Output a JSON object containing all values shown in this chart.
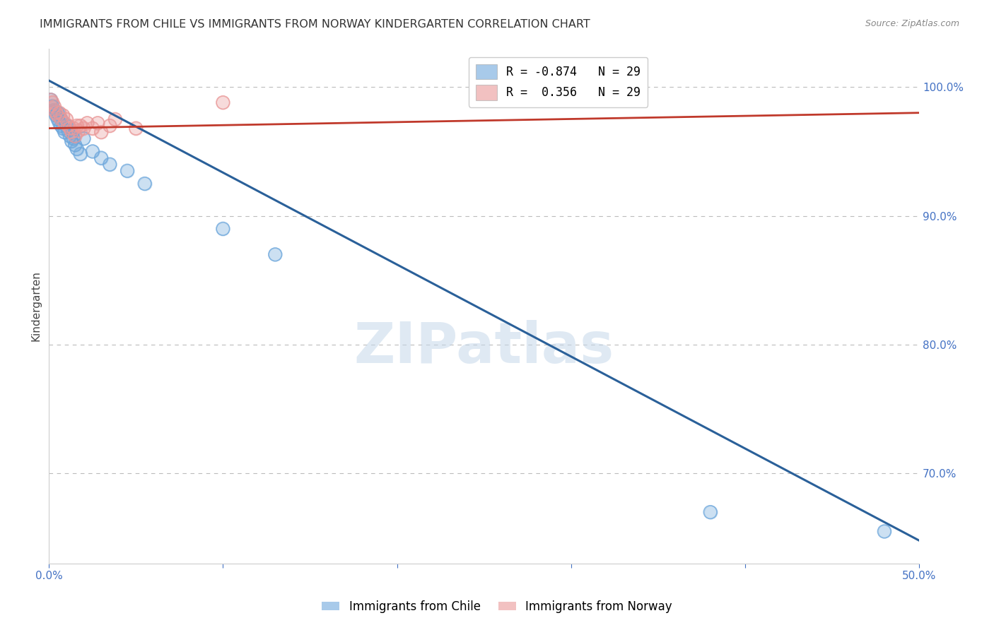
{
  "title": "IMMIGRANTS FROM CHILE VS IMMIGRANTS FROM NORWAY KINDERGARTEN CORRELATION CHART",
  "source_text": "Source: ZipAtlas.com",
  "ylabel": "Kindergarten",
  "watermark": "ZIPatlas",
  "xlim": [
    0.0,
    0.5
  ],
  "ylim": [
    0.63,
    1.03
  ],
  "xtick_positions": [
    0.0,
    0.1,
    0.2,
    0.3,
    0.4,
    0.5
  ],
  "xtick_labels": [
    "0.0%",
    "",
    "",
    "",
    "",
    "50.0%"
  ],
  "yticks": [
    0.7,
    0.8,
    0.9,
    1.0
  ],
  "ytick_labels": [
    "70.0%",
    "80.0%",
    "90.0%",
    "100.0%"
  ],
  "chile_color": "#6fa8dc",
  "norway_color": "#ea9999",
  "legend_R_chile": "R = -0.874",
  "legend_R_norway": "R =  0.356",
  "legend_N": "N = 29",
  "chile_scatter_x": [
    0.001,
    0.002,
    0.003,
    0.004,
    0.005,
    0.005,
    0.006,
    0.007,
    0.007,
    0.008,
    0.009,
    0.01,
    0.011,
    0.012,
    0.013,
    0.014,
    0.015,
    0.016,
    0.018,
    0.02,
    0.025,
    0.03,
    0.035,
    0.045,
    0.055,
    0.1,
    0.13,
    0.38,
    0.48
  ],
  "chile_scatter_y": [
    0.99,
    0.985,
    0.982,
    0.978,
    0.975,
    0.98,
    0.972,
    0.97,
    0.975,
    0.968,
    0.965,
    0.97,
    0.966,
    0.962,
    0.958,
    0.96,
    0.955,
    0.952,
    0.948,
    0.96,
    0.95,
    0.945,
    0.94,
    0.935,
    0.925,
    0.89,
    0.87,
    0.67,
    0.655
  ],
  "norway_scatter_x": [
    0.001,
    0.002,
    0.003,
    0.003,
    0.004,
    0.005,
    0.006,
    0.007,
    0.008,
    0.009,
    0.01,
    0.011,
    0.012,
    0.013,
    0.014,
    0.015,
    0.016,
    0.017,
    0.018,
    0.02,
    0.022,
    0.025,
    0.028,
    0.03,
    0.035,
    0.038,
    0.05,
    0.1,
    0.32
  ],
  "norway_scatter_y": [
    0.99,
    0.988,
    0.985,
    0.982,
    0.98,
    0.978,
    0.98,
    0.975,
    0.978,
    0.972,
    0.975,
    0.97,
    0.968,
    0.965,
    0.968,
    0.962,
    0.97,
    0.966,
    0.97,
    0.968,
    0.972,
    0.968,
    0.972,
    0.965,
    0.97,
    0.975,
    0.968,
    0.988,
    0.99
  ],
  "blue_line_x": [
    0.0,
    0.5
  ],
  "blue_line_y": [
    1.005,
    0.648
  ],
  "red_line_x": [
    0.0,
    0.5
  ],
  "red_line_y": [
    0.968,
    0.98
  ],
  "background_color": "#ffffff",
  "grid_color": "#bbbbbb",
  "title_color": "#333333",
  "tick_color": "#4472c4",
  "ylabel_color": "#444444",
  "legend_label_chile": "Immigrants from Chile",
  "legend_label_norway": "Immigrants from Norway"
}
